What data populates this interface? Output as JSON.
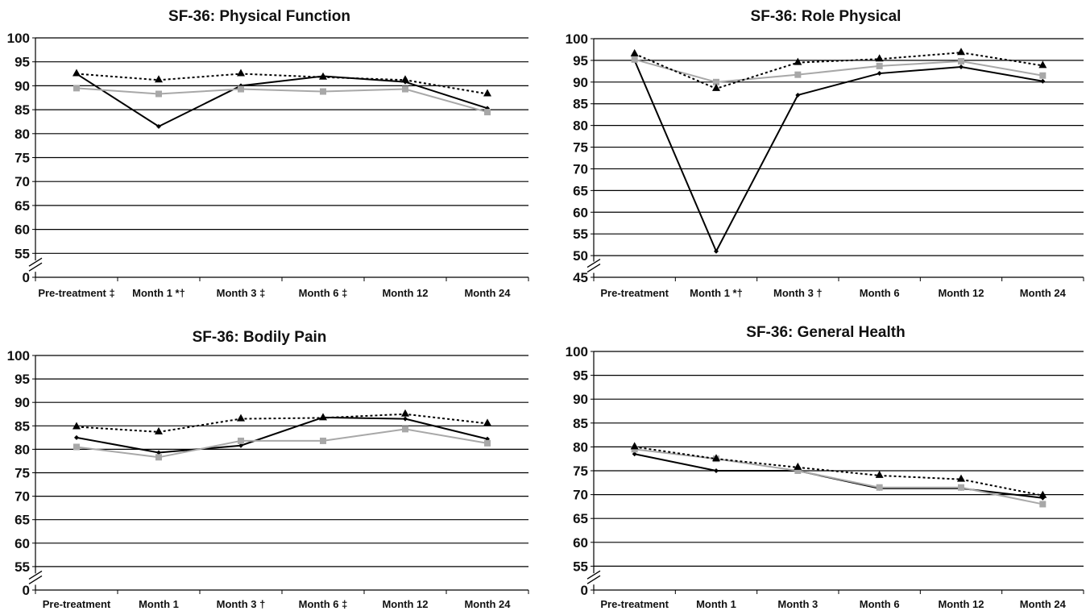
{
  "colors": {
    "series_solid_black": "#000000",
    "series_gray": "#a8a8a8",
    "series_dotted_black": "#000000",
    "gridline": "#000000"
  },
  "chart_data": [
    {
      "type": "line",
      "title": "SF-36: Physical Function",
      "categories": [
        "Pre-treatment ‡",
        "Month 1 *†",
        "Month 3 ‡",
        "Month 6 ‡",
        "Month 12",
        "Month 24"
      ],
      "yticks": [
        0,
        55,
        60,
        65,
        70,
        75,
        80,
        85,
        90,
        95,
        100
      ],
      "ylim": [
        0,
        100
      ],
      "axis_break": true,
      "grid": true,
      "series": [
        {
          "style": "solid-black-diamond",
          "values": [
            92.5,
            81.5,
            90,
            92,
            90.8,
            85.3
          ]
        },
        {
          "style": "gray-square",
          "values": [
            89.5,
            88.3,
            89.3,
            88.8,
            89.3,
            84.5
          ]
        },
        {
          "style": "dotted-black-triangle",
          "values": [
            92.5,
            91.2,
            92.5,
            91.8,
            91.2,
            88.3
          ]
        }
      ]
    },
    {
      "type": "line",
      "title": "SF-36: Role Physical",
      "categories": [
        "Pre-treatment",
        "Month 1 *†",
        "Month 3 †",
        "Month 6",
        "Month 12",
        "Month 24"
      ],
      "yticks": [
        45,
        50,
        55,
        60,
        65,
        70,
        75,
        80,
        85,
        90,
        95,
        100
      ],
      "ylim": [
        45,
        100
      ],
      "axis_break": true,
      "grid": true,
      "series": [
        {
          "style": "solid-black-diamond",
          "values": [
            95,
            51,
            87,
            92,
            93.5,
            90.2
          ]
        },
        {
          "style": "gray-square",
          "values": [
            95.2,
            90,
            91.7,
            93.7,
            94.8,
            91.5
          ]
        },
        {
          "style": "dotted-black-triangle",
          "values": [
            96.5,
            88.5,
            94.5,
            95.3,
            96.8,
            93.8
          ]
        }
      ]
    },
    {
      "type": "line",
      "title": "SF-36: Bodily Pain",
      "categories": [
        "Pre-treatment",
        "Month 1",
        "Month 3 †",
        "Month 6 ‡",
        "Month 12",
        "Month 24"
      ],
      "yticks": [
        0,
        55,
        60,
        65,
        70,
        75,
        80,
        85,
        90,
        95,
        100
      ],
      "ylim": [
        0,
        100
      ],
      "axis_break": true,
      "grid": true,
      "series": [
        {
          "style": "solid-black-diamond",
          "values": [
            82.5,
            79.3,
            80.8,
            86.8,
            86.5,
            82.2
          ]
        },
        {
          "style": "gray-square",
          "values": [
            80.5,
            78.3,
            81.8,
            81.8,
            84.3,
            81.3
          ]
        },
        {
          "style": "dotted-black-triangle",
          "values": [
            84.8,
            83.7,
            86.5,
            86.7,
            87.5,
            85.5
          ]
        }
      ]
    },
    {
      "type": "line",
      "title": "SF-36: General Health",
      "categories": [
        "Pre-treatment",
        "Month 1",
        "Month 3",
        "Month 6",
        "Month 12",
        "Month 24"
      ],
      "yticks": [
        0,
        55,
        60,
        65,
        70,
        75,
        80,
        85,
        90,
        95,
        100
      ],
      "ylim": [
        0,
        100
      ],
      "axis_break": true,
      "grid": true,
      "series": [
        {
          "style": "solid-black-diamond",
          "values": [
            78.5,
            75,
            75,
            71.3,
            71.3,
            69.3
          ]
        },
        {
          "style": "gray-square",
          "values": [
            79.5,
            77.5,
            75,
            71.5,
            71.5,
            68
          ]
        },
        {
          "style": "dotted-black-triangle",
          "values": [
            80,
            77.5,
            75.7,
            74,
            73.2,
            69.8
          ]
        }
      ]
    }
  ]
}
